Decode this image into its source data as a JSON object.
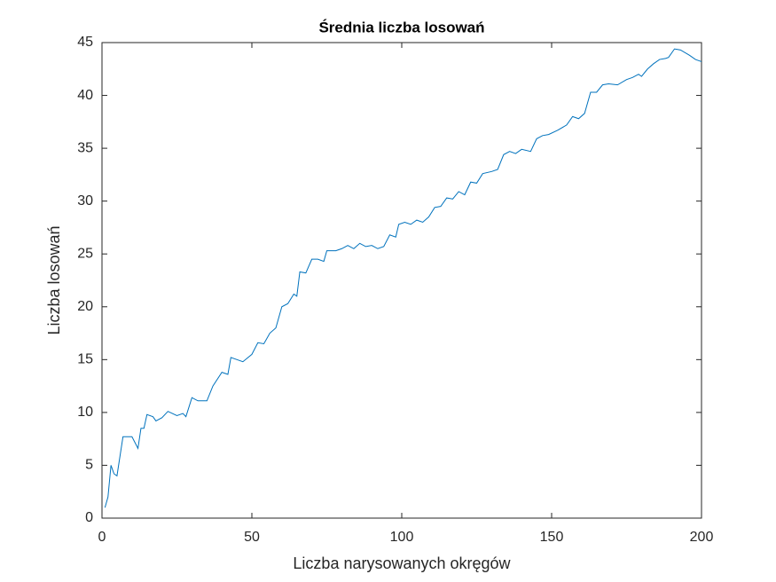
{
  "chart_data": {
    "type": "line",
    "title": "Średnia liczba losowań",
    "xlabel": "Liczba narysowanych okręgów",
    "ylabel": "Liczba losowań",
    "x": [
      1,
      2,
      3,
      4,
      5,
      7,
      10,
      12,
      13,
      14,
      15,
      17,
      18,
      20,
      22,
      25,
      27,
      28,
      30,
      32,
      35,
      37,
      40,
      42,
      43,
      45,
      47,
      50,
      52,
      54,
      56,
      58,
      60,
      62,
      64,
      65,
      66,
      68,
      70,
      72,
      74,
      75,
      78,
      80,
      82,
      84,
      86,
      88,
      90,
      92,
      94,
      96,
      98,
      99,
      101,
      103,
      105,
      107,
      109,
      111,
      113,
      115,
      117,
      119,
      121,
      123,
      125,
      127,
      130,
      132,
      134,
      136,
      138,
      140,
      143,
      145,
      147,
      149,
      152,
      155,
      157,
      159,
      161,
      163,
      165,
      167,
      169,
      172,
      175,
      177,
      179,
      180,
      182,
      184,
      186,
      188,
      189,
      191,
      193,
      196,
      198,
      200
    ],
    "series": [
      {
        "color": "#0072bd",
        "values": [
          1,
          2,
          5,
          4.2,
          4,
          7.7,
          7.7,
          6.6,
          8.5,
          8.5,
          9.8,
          9.6,
          9.2,
          9.5,
          10.1,
          9.7,
          9.9,
          9.6,
          11.4,
          11.1,
          11.1,
          12.5,
          13.8,
          13.6,
          15.2,
          15.0,
          14.8,
          15.5,
          16.6,
          16.5,
          17.5,
          18.0,
          20.0,
          20.3,
          21.2,
          21.0,
          23.3,
          23.2,
          24.5,
          24.5,
          24.3,
          25.3,
          25.3,
          25.5,
          25.8,
          25.5,
          26.0,
          25.7,
          25.8,
          25.5,
          25.7,
          26.8,
          26.6,
          27.8,
          28.0,
          27.8,
          28.2,
          28.0,
          28.5,
          29.4,
          29.5,
          30.3,
          30.2,
          30.9,
          30.6,
          31.8,
          31.7,
          32.6,
          32.8,
          33.0,
          34.4,
          34.7,
          34.5,
          34.9,
          34.7,
          35.9,
          36.2,
          36.3,
          36.7,
          37.2,
          38.0,
          37.8,
          38.3,
          40.3,
          40.3,
          41.0,
          41.1,
          41.0,
          41.5,
          41.7,
          42.0,
          41.8,
          42.5,
          43.0,
          43.4,
          43.5,
          43.6,
          44.4,
          44.3,
          43.8,
          43.4,
          43.2
        ]
      }
    ],
    "xlim": [
      0,
      200
    ],
    "xticks": [
      0,
      50,
      100,
      150,
      200
    ],
    "ylim": [
      0,
      45
    ],
    "yticks": [
      0,
      5,
      10,
      15,
      20,
      25,
      30,
      35,
      40,
      45
    ]
  }
}
